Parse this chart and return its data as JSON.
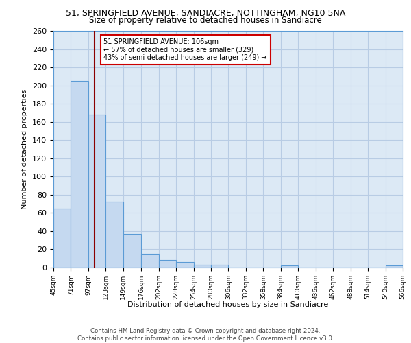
{
  "title": "51, SPRINGFIELD AVENUE, SANDIACRE, NOTTINGHAM, NG10 5NA",
  "subtitle": "Size of property relative to detached houses in Sandiacre",
  "xlabel": "Distribution of detached houses by size in Sandiacre",
  "ylabel": "Number of detached properties",
  "bin_edges": [
    45,
    71,
    97,
    123,
    149,
    176,
    202,
    228,
    254,
    280,
    306,
    332,
    358,
    384,
    410,
    436,
    462,
    488,
    514,
    540,
    566
  ],
  "bar_heights": [
    65,
    205,
    168,
    72,
    37,
    15,
    8,
    6,
    3,
    3,
    0,
    0,
    0,
    2,
    0,
    0,
    0,
    0,
    0,
    2
  ],
  "bar_color": "#c5d9f0",
  "bar_edge_color": "#5b9bd5",
  "property_size": 106,
  "vline_color": "#8b0000",
  "annotation_text": "51 SPRINGFIELD AVENUE: 106sqm\n← 57% of detached houses are smaller (329)\n43% of semi-detached houses are larger (249) →",
  "annotation_box_color": "#ffffff",
  "annotation_box_edge": "#cc0000",
  "bg_color": "#dce9f5",
  "grid_color": "#b8cce4",
  "footer_text": "Contains HM Land Registry data © Crown copyright and database right 2024.\nContains public sector information licensed under the Open Government Licence v3.0.",
  "ylim": [
    0,
    260
  ],
  "yticks": [
    0,
    20,
    40,
    60,
    80,
    100,
    120,
    140,
    160,
    180,
    200,
    220,
    240,
    260
  ],
  "tick_labels": [
    "45sqm",
    "71sqm",
    "97sqm",
    "123sqm",
    "149sqm",
    "176sqm",
    "202sqm",
    "228sqm",
    "254sqm",
    "280sqm",
    "306sqm",
    "332sqm",
    "358sqm",
    "384sqm",
    "410sqm",
    "436sqm",
    "462sqm",
    "488sqm",
    "514sqm",
    "540sqm",
    "566sqm"
  ]
}
